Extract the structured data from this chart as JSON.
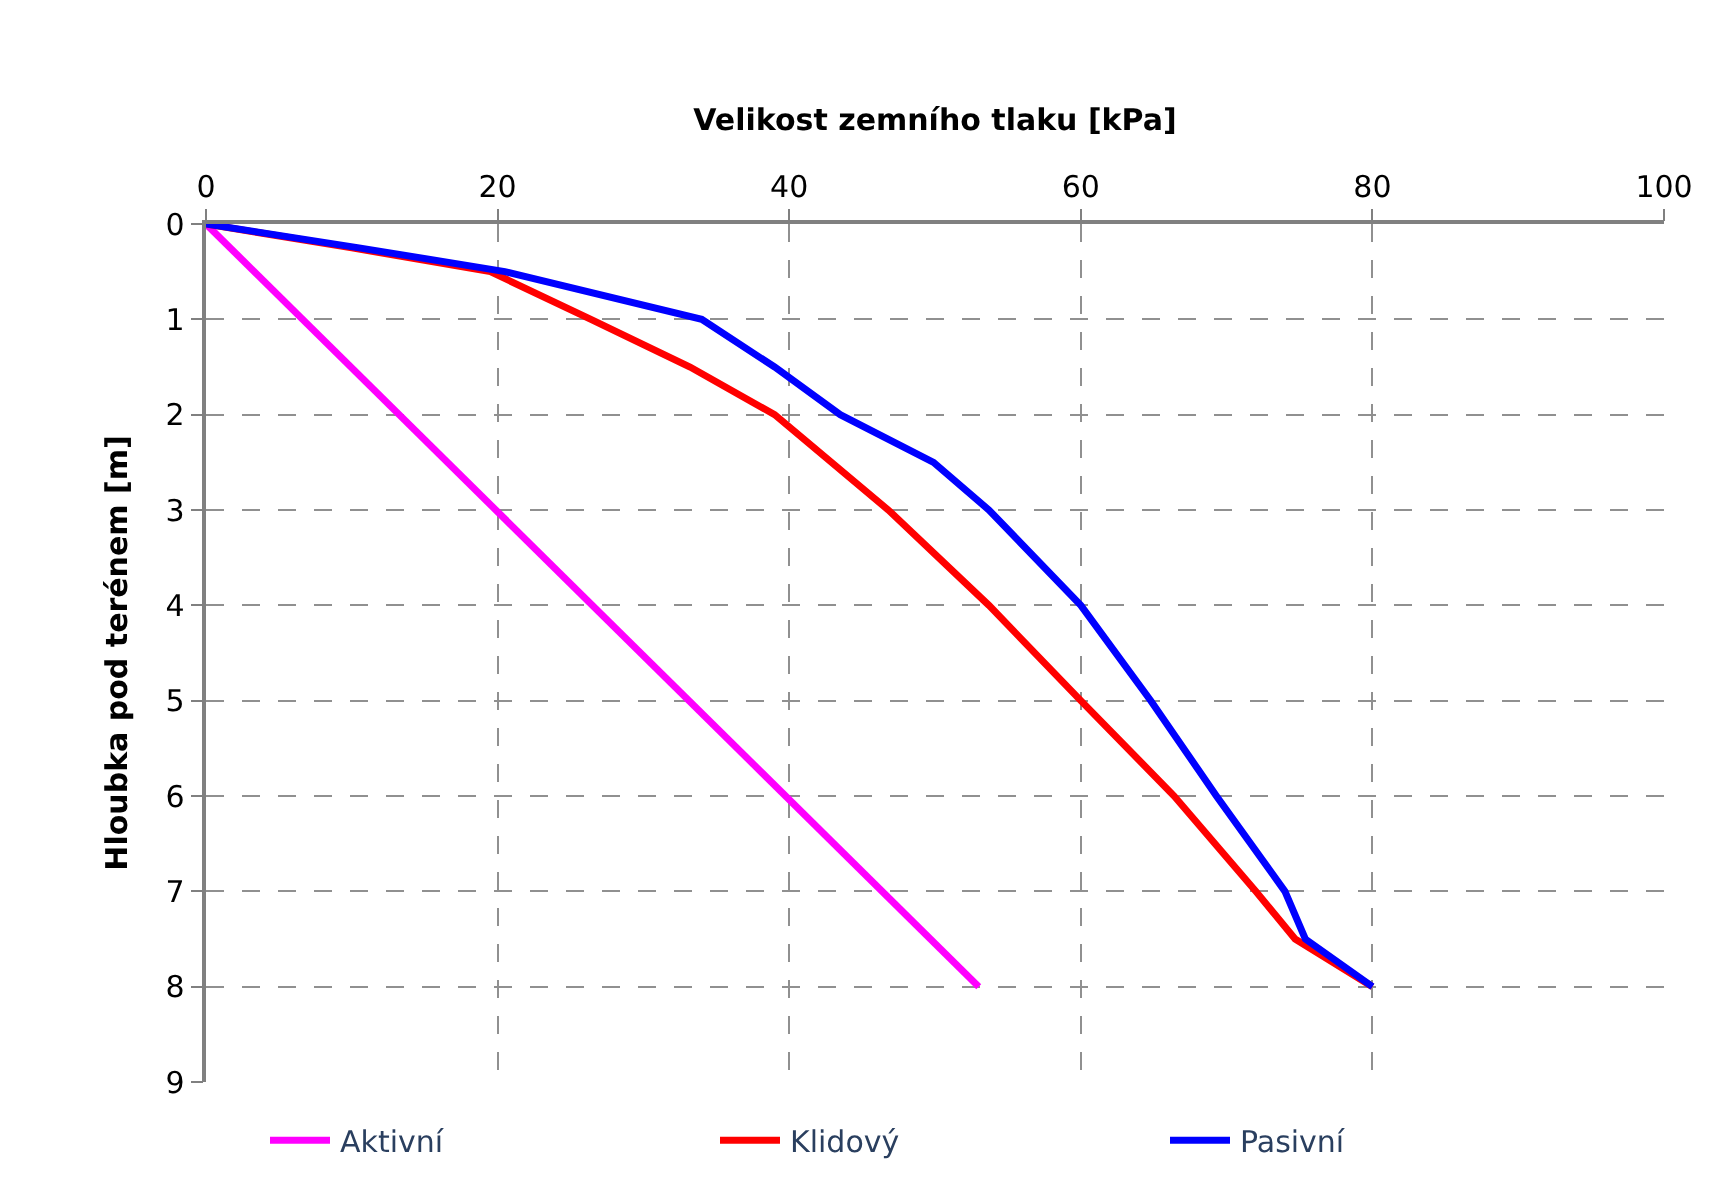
{
  "chart_data": {
    "type": "line",
    "xlabel": "Velikost zemního tlaku [kPa]",
    "ylabel": "Hloubka pod terénem [m]",
    "xlim": [
      0,
      100
    ],
    "xticks": [
      0,
      20,
      40,
      60,
      80,
      100
    ],
    "ylim": [
      9,
      0
    ],
    "yticks": [
      0,
      1,
      2,
      3,
      4,
      5,
      6,
      7,
      8,
      9
    ],
    "grid": true,
    "legend": "bottom",
    "marker": "none",
    "line_style": "solid",
    "series": [
      {
        "name": "Aktivní",
        "color": "#ff00ff",
        "x": [
          0,
          53
        ],
        "values": [
          0,
          8
        ]
      },
      {
        "name": "Klidový",
        "color": "#ff0000",
        "x": [
          0,
          10,
          19.5,
          26.4,
          33.2,
          39,
          46.8,
          53.7,
          60,
          66.4,
          72,
          74.7,
          80
        ],
        "values": [
          0,
          0.25,
          0.5,
          1,
          1.5,
          2,
          3,
          4,
          5,
          6,
          7,
          7.5,
          8
        ]
      },
      {
        "name": "Pasivní",
        "color": "#0000ff",
        "x": [
          0,
          10.5,
          20.5,
          34,
          39,
          43.5,
          49.9,
          53.7,
          60,
          64.8,
          69.3,
          74,
          75.4,
          80
        ],
        "values": [
          0,
          0.25,
          0.5,
          1,
          1.5,
          2,
          2.5,
          3,
          4,
          5,
          6,
          7,
          7.5,
          8
        ]
      }
    ]
  }
}
